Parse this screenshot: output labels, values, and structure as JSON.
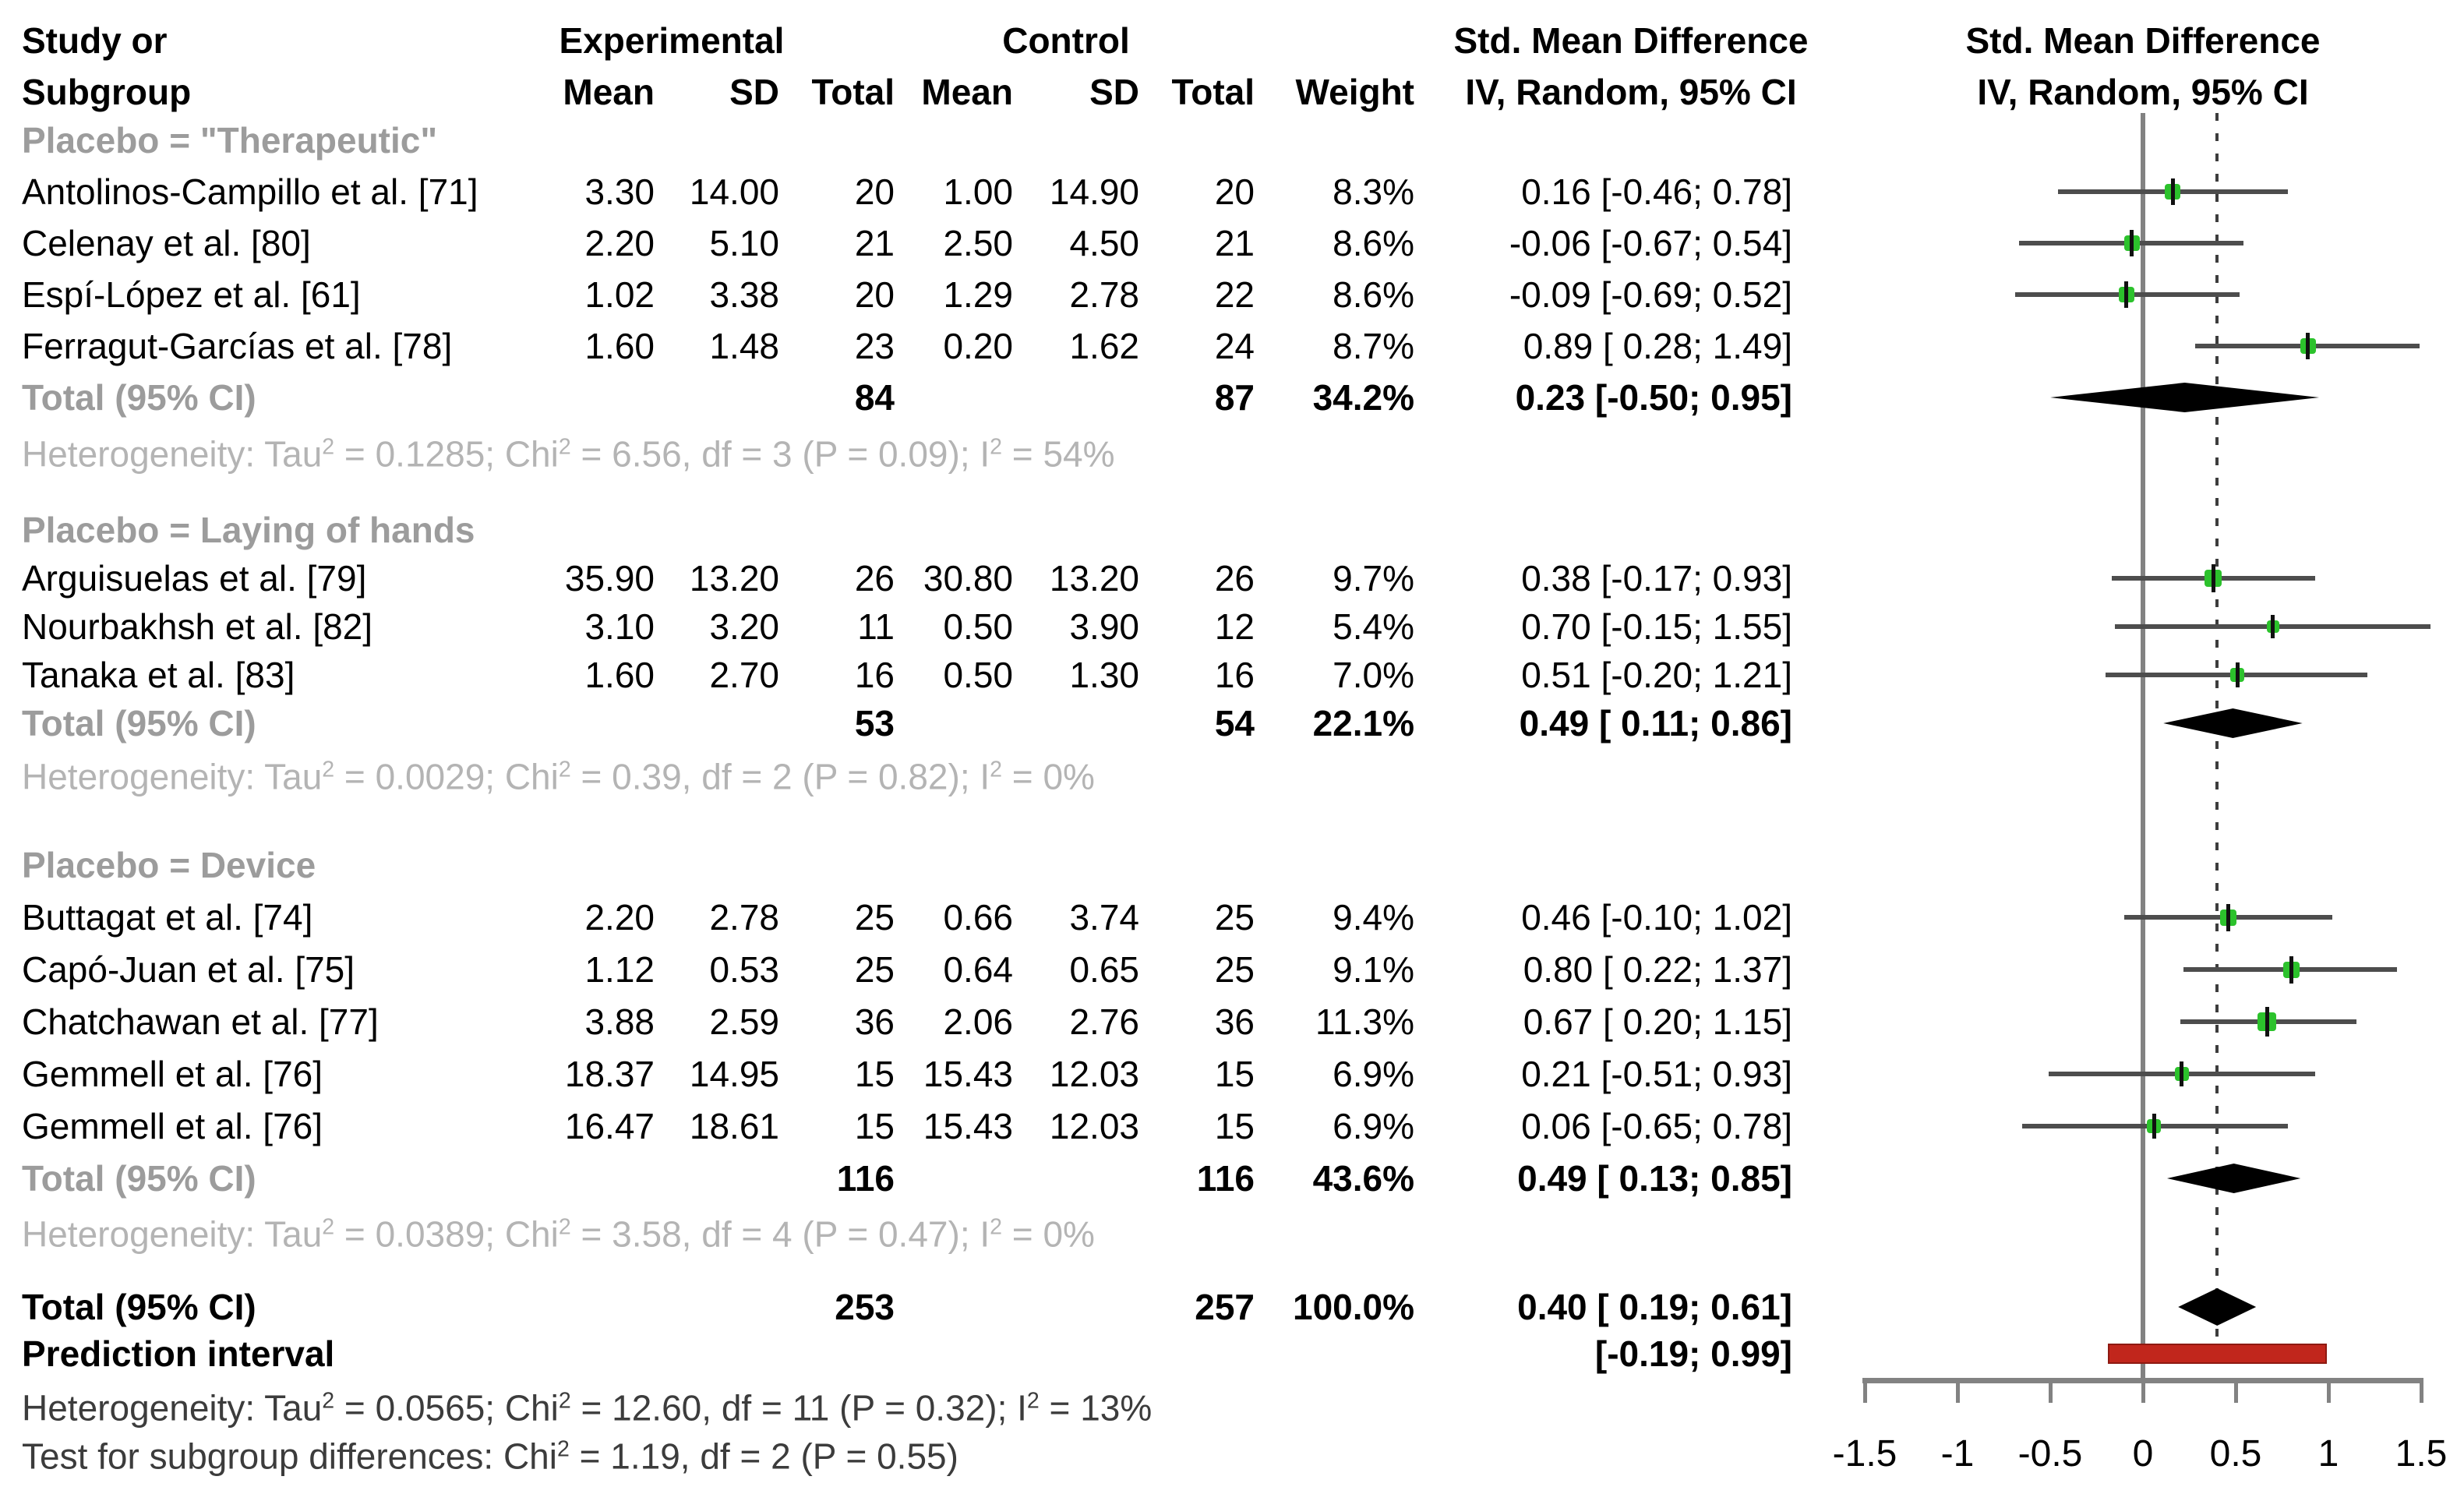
{
  "chart_data": {
    "type": "forest",
    "header": {
      "study_line1": "Study or",
      "study_line2": "Subgroup",
      "experimental": "Experimental",
      "control": "Control",
      "mean": "Mean",
      "sd": "SD",
      "total": "Total",
      "weight": "Weight",
      "smd_line1": "Std. Mean Difference",
      "smd_line2": "IV, Random, 95% CI"
    },
    "groups": [
      {
        "label": "Placebo = \"Therapeutic\"",
        "studies": [
          {
            "name": "Antolinos-Campillo et al. [71]",
            "exp_mean": "3.30",
            "exp_sd": "14.00",
            "exp_total": "20",
            "ctrl_mean": "1.00",
            "ctrl_sd": "14.90",
            "ctrl_total": "20",
            "weight": "8.3%",
            "weight_value": 8.3,
            "smd_text": "0.16 [-0.46; 0.78]",
            "smd": 0.16,
            "lo": -0.46,
            "hi": 0.78
          },
          {
            "name": "Celenay et al. [80]",
            "exp_mean": "2.20",
            "exp_sd": "5.10",
            "exp_total": "21",
            "ctrl_mean": "2.50",
            "ctrl_sd": "4.50",
            "ctrl_total": "21",
            "weight": "8.6%",
            "weight_value": 8.6,
            "smd_text": "-0.06 [-0.67; 0.54]",
            "smd": -0.06,
            "lo": -0.67,
            "hi": 0.54
          },
          {
            "name": "Espí-López et al. [61]",
            "exp_mean": "1.02",
            "exp_sd": "3.38",
            "exp_total": "20",
            "ctrl_mean": "1.29",
            "ctrl_sd": "2.78",
            "ctrl_total": "22",
            "weight": "8.6%",
            "weight_value": 8.6,
            "smd_text": "-0.09 [-0.69; 0.52]",
            "smd": -0.09,
            "lo": -0.69,
            "hi": 0.52
          },
          {
            "name": "Ferragut-Garcías et al. [78]",
            "exp_mean": "1.60",
            "exp_sd": "1.48",
            "exp_total": "23",
            "ctrl_mean": "0.20",
            "ctrl_sd": "1.62",
            "ctrl_total": "24",
            "weight": "8.7%",
            "weight_value": 8.7,
            "smd_text": "0.89 [ 0.28; 1.49]",
            "smd": 0.89,
            "lo": 0.28,
            "hi": 1.49
          }
        ],
        "total": {
          "label": "Total (95% CI)",
          "exp_total": "84",
          "ctrl_total": "87",
          "weight": "34.2%",
          "smd_text": "0.23 [-0.50; 0.95]",
          "smd": 0.23,
          "lo": -0.5,
          "hi": 0.95
        },
        "heterogeneity": "Heterogeneity: Tau^2 = 0.1285; Chi^2 = 6.56, df = 3 (P = 0.09); I^2 = 54%"
      },
      {
        "label": "Placebo = Laying of hands",
        "studies": [
          {
            "name": "Arguisuelas et al. [79]",
            "exp_mean": "35.90",
            "exp_sd": "13.20",
            "exp_total": "26",
            "ctrl_mean": "30.80",
            "ctrl_sd": "13.20",
            "ctrl_total": "26",
            "weight": "9.7%",
            "weight_value": 9.7,
            "smd_text": "0.38 [-0.17; 0.93]",
            "smd": 0.38,
            "lo": -0.17,
            "hi": 0.93
          },
          {
            "name": "Nourbakhsh et al. [82]",
            "exp_mean": "3.10",
            "exp_sd": "3.20",
            "exp_total": "11",
            "ctrl_mean": "0.50",
            "ctrl_sd": "3.90",
            "ctrl_total": "12",
            "weight": "5.4%",
            "weight_value": 5.4,
            "smd_text": "0.70 [-0.15; 1.55]",
            "smd": 0.7,
            "lo": -0.15,
            "hi": 1.55
          },
          {
            "name": "Tanaka et al. [83]",
            "exp_mean": "1.60",
            "exp_sd": "2.70",
            "exp_total": "16",
            "ctrl_mean": "0.50",
            "ctrl_sd": "1.30",
            "ctrl_total": "16",
            "weight": "7.0%",
            "weight_value": 7.0,
            "smd_text": "0.51 [-0.20; 1.21]",
            "smd": 0.51,
            "lo": -0.2,
            "hi": 1.21
          }
        ],
        "total": {
          "label": "Total (95% CI)",
          "exp_total": "53",
          "ctrl_total": "54",
          "weight": "22.1%",
          "smd_text": "0.49 [ 0.11; 0.86]",
          "smd": 0.49,
          "lo": 0.11,
          "hi": 0.86
        },
        "heterogeneity": "Heterogeneity: Tau^2 = 0.0029; Chi^2 = 0.39, df = 2 (P = 0.82); I^2 = 0%"
      },
      {
        "label": "Placebo = Device",
        "studies": [
          {
            "name": "Buttagat et al. [74]",
            "exp_mean": "2.20",
            "exp_sd": "2.78",
            "exp_total": "25",
            "ctrl_mean": "0.66",
            "ctrl_sd": "3.74",
            "ctrl_total": "25",
            "weight": "9.4%",
            "weight_value": 9.4,
            "smd_text": "0.46 [-0.10; 1.02]",
            "smd": 0.46,
            "lo": -0.1,
            "hi": 1.02
          },
          {
            "name": "Capó-Juan et al. [75]",
            "exp_mean": "1.12",
            "exp_sd": "0.53",
            "exp_total": "25",
            "ctrl_mean": "0.64",
            "ctrl_sd": "0.65",
            "ctrl_total": "25",
            "weight": "9.1%",
            "weight_value": 9.1,
            "smd_text": "0.80 [ 0.22; 1.37]",
            "smd": 0.8,
            "lo": 0.22,
            "hi": 1.37
          },
          {
            "name": "Chatchawan et al. [77]",
            "exp_mean": "3.88",
            "exp_sd": "2.59",
            "exp_total": "36",
            "ctrl_mean": "2.06",
            "ctrl_sd": "2.76",
            "ctrl_total": "36",
            "weight": "11.3%",
            "weight_value": 11.3,
            "smd_text": "0.67 [ 0.20; 1.15]",
            "smd": 0.67,
            "lo": 0.2,
            "hi": 1.15
          },
          {
            "name": "Gemmell et al. [76]",
            "exp_mean": "18.37",
            "exp_sd": "14.95",
            "exp_total": "15",
            "ctrl_mean": "15.43",
            "ctrl_sd": "12.03",
            "ctrl_total": "15",
            "weight": "6.9%",
            "weight_value": 6.9,
            "smd_text": "0.21 [-0.51; 0.93]",
            "smd": 0.21,
            "lo": -0.51,
            "hi": 0.93
          },
          {
            "name": "Gemmell et al. [76]",
            "exp_mean": "16.47",
            "exp_sd": "18.61",
            "exp_total": "15",
            "ctrl_mean": "15.43",
            "ctrl_sd": "12.03",
            "ctrl_total": "15",
            "weight": "6.9%",
            "weight_value": 6.9,
            "smd_text": "0.06 [-0.65; 0.78]",
            "smd": 0.06,
            "lo": -0.65,
            "hi": 0.78
          }
        ],
        "total": {
          "label": "Total (95% CI)",
          "exp_total": "116",
          "ctrl_total": "116",
          "weight": "43.6%",
          "smd_text": "0.49 [ 0.13; 0.85]",
          "smd": 0.49,
          "lo": 0.13,
          "hi": 0.85
        },
        "heterogeneity": "Heterogeneity: Tau^2 = 0.0389; Chi^2 = 3.58, df = 4 (P = 0.47); I^2 = 0%"
      }
    ],
    "overall": {
      "label": "Total (95% CI)",
      "exp_total": "253",
      "ctrl_total": "257",
      "weight": "100.0%",
      "smd_text": "0.40 [ 0.19; 0.61]",
      "smd": 0.4,
      "lo": 0.19,
      "hi": 0.61
    },
    "prediction": {
      "label": "Prediction interval",
      "smd_text": "[-0.19; 0.99]",
      "lo": -0.19,
      "hi": 0.99
    },
    "heterogeneity_overall": "Heterogeneity: Tau^2 = 0.0565; Chi^2 = 12.60, df = 11 (P = 0.32); I^2 = 13%",
    "test_subgroup": "Test for subgroup differences: Chi^2 = 1.19, df = 2 (P = 0.55)",
    "axis": {
      "min": -1.5,
      "max": 1.5,
      "tick_values": [
        -1.5,
        -1,
        -0.5,
        0,
        0.5,
        1,
        1.5
      ],
      "tick_labels": [
        "-1.5",
        "-1",
        "-0.5",
        "0",
        "0.5",
        "1",
        "1.5"
      ],
      "zero_line": 0,
      "dotted_line_at": 0.4
    },
    "colors": {
      "marker_green": "#2cc22c",
      "ci_line": "#4d4d4d",
      "diamond": "#000000",
      "prediction_bar": "#c1261c",
      "axis_gray": "#828282",
      "dotted_line": "#3d3d3d",
      "subgroup_text": "#9c9c9c",
      "het_text": "#b4b4b4",
      "dark_text": "#000000"
    }
  }
}
